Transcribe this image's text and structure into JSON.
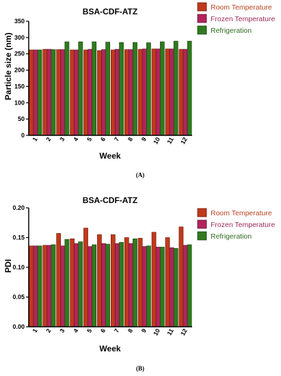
{
  "colors": {
    "room": "#c0391b",
    "frozen": "#b3245c",
    "refrigeration": "#2f7a1e",
    "room_stroke": "#6b1a0c",
    "frozen_stroke": "#5c1030",
    "refrigeration_stroke": "#17400e",
    "room_text": "#b8431e",
    "frozen_text": "#9c2957",
    "refrigeration_text": "#2d6b1f"
  },
  "chart_data": [
    {
      "type": "bar",
      "panel": "(A)",
      "title": "BSA-CDF-ATZ",
      "xlabel": "Week",
      "ylabel": "Particle size (nm)",
      "ylim": [
        0,
        350
      ],
      "yticks": [
        "0",
        "50",
        "100",
        "150",
        "200",
        "250",
        "300",
        "350"
      ],
      "categories": [
        "1",
        "2",
        "3",
        "4",
        "5",
        "6",
        "7",
        "8",
        "9",
        "10",
        "11",
        "12"
      ],
      "legend_position": "top-right",
      "series": [
        {
          "name": "Room Temperature",
          "values": [
            262,
            264,
            263,
            262,
            262,
            260,
            262,
            263,
            264,
            265,
            265,
            264
          ]
        },
        {
          "name": "Frozen Temperature",
          "values": [
            262,
            264,
            263,
            262,
            264,
            263,
            264,
            263,
            265,
            265,
            265,
            264
          ]
        },
        {
          "name": "Refrigeration",
          "values": [
            262,
            263,
            287,
            287,
            287,
            286,
            285,
            285,
            284,
            287,
            289,
            289
          ]
        }
      ]
    },
    {
      "type": "bar",
      "panel": "(B)",
      "title": "BSA-CDF-ATZ",
      "xlabel": "Week",
      "ylabel": "PDI",
      "ylim": [
        0,
        0.2
      ],
      "yticks": [
        "0.00",
        "0.05",
        "0.10",
        "0.15",
        "0.20"
      ],
      "categories": [
        "1",
        "2",
        "3",
        "4",
        "5",
        "6",
        "7",
        "8",
        "9",
        "10",
        "11",
        "12"
      ],
      "legend_position": "top-right",
      "series": [
        {
          "name": "Room Temperature",
          "values": [
            0.136,
            0.137,
            0.157,
            0.148,
            0.166,
            0.155,
            0.155,
            0.15,
            0.149,
            0.159,
            0.15,
            0.168
          ]
        },
        {
          "name": "Frozen Temperature",
          "values": [
            0.136,
            0.137,
            0.136,
            0.14,
            0.135,
            0.14,
            0.14,
            0.14,
            0.135,
            0.134,
            0.133,
            0.137
          ]
        },
        {
          "name": "Refrigeration",
          "values": [
            0.136,
            0.138,
            0.147,
            0.143,
            0.138,
            0.139,
            0.142,
            0.148,
            0.136,
            0.134,
            0.132,
            0.138
          ]
        }
      ]
    }
  ]
}
